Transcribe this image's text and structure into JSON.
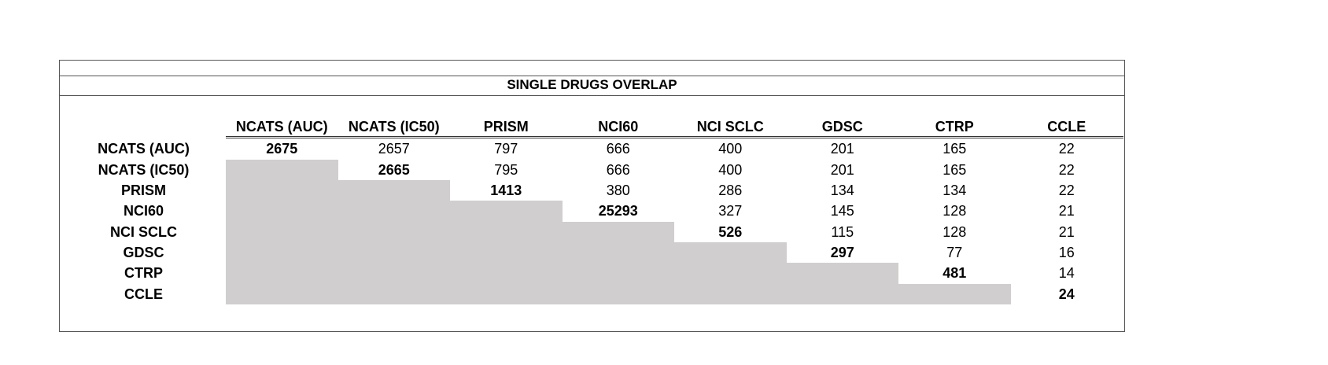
{
  "table": {
    "title": "SINGLE DRUGS OVERLAP",
    "columns": [
      "NCATS (AUC)",
      "NCATS (IC50)",
      "PRISM",
      "NCI60",
      "NCI SCLC",
      "GDSC",
      "CTRP",
      "CCLE"
    ],
    "rows": [
      {
        "label": "NCATS (AUC)",
        "values": [
          2675,
          2657,
          797,
          666,
          400,
          201,
          165,
          22
        ]
      },
      {
        "label": "NCATS (IC50)",
        "values": [
          2665,
          795,
          666,
          400,
          201,
          165,
          22
        ]
      },
      {
        "label": "PRISM",
        "values": [
          1413,
          380,
          286,
          134,
          134,
          22
        ]
      },
      {
        "label": "NCI60",
        "values": [
          25293,
          327,
          145,
          128,
          21
        ]
      },
      {
        "label": "NCI SCLC",
        "values": [
          526,
          115,
          128,
          21
        ]
      },
      {
        "label": "GDSC",
        "values": [
          297,
          77,
          16
        ]
      },
      {
        "label": "CTRP",
        "values": [
          481,
          14
        ]
      },
      {
        "label": "CCLE",
        "values": [
          24
        ]
      }
    ]
  }
}
